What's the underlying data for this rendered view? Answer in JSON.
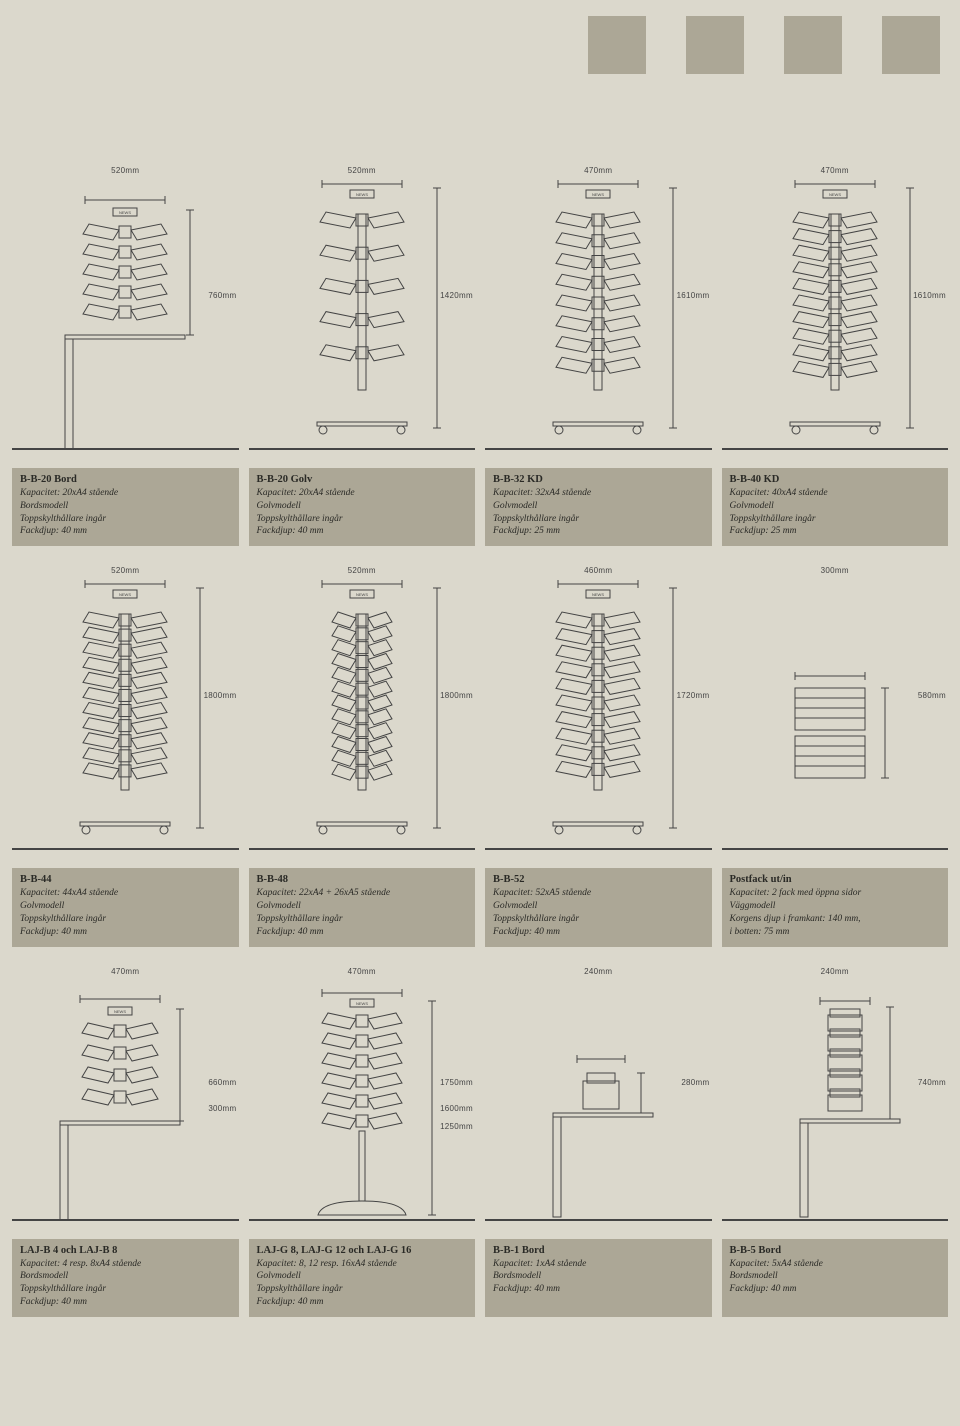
{
  "colors": {
    "page_bg": "#dbd8cc",
    "box_bg": "#aca796",
    "line": "#444",
    "text": "#2a2a26"
  },
  "products": [
    {
      "id": "bb20bord",
      "title": "B-B-20 Bord",
      "lines": [
        "Kapacitet: 20xA4 stående",
        "Bordsmodell",
        "Toppskylthållare ingår",
        "Fackdjup: 40 mm"
      ],
      "dim_top": "520mm",
      "dim_side": "760mm",
      "figure": "table_rack"
    },
    {
      "id": "bb20golv",
      "title": "B-B-20 Golv",
      "lines": [
        "Kapacitet: 20xA4 stående",
        "Golvmodell",
        "Toppskylthållare ingår",
        "Fackdjup: 40 mm"
      ],
      "dim_top": "520mm",
      "dim_side": "1420mm",
      "figure": "floor_short_wings"
    },
    {
      "id": "bb32kd",
      "title": "B-B-32 KD",
      "lines": [
        "Kapacitet: 32xA4 stående",
        "Golvmodell",
        "Toppskylthållare ingår",
        "Fackdjup: 25 mm"
      ],
      "dim_top": "470mm",
      "dim_side": "1610mm",
      "figure": "floor_wings_8"
    },
    {
      "id": "bb40kd",
      "title": "B-B-40 KD",
      "lines": [
        "Kapacitet: 40xA4 stående",
        "Golvmodell",
        "Toppskylthållare ingår",
        "Fackdjup: 25 mm"
      ],
      "dim_top": "470mm",
      "dim_side": "1610mm",
      "figure": "floor_wings_10"
    },
    {
      "id": "bb44",
      "title": "B-B-44",
      "lines": [
        "Kapacitet: 44xA4 stående",
        "Golvmodell",
        "Toppskylthållare ingår",
        "Fackdjup: 40 mm"
      ],
      "dim_top": "520mm",
      "dim_side": "1800mm",
      "figure": "floor_wings_11"
    },
    {
      "id": "bb48",
      "title": "B-B-48",
      "lines": [
        "Kapacitet: 22xA4 + 26xA5 stående",
        "Golvmodell",
        "Toppskylthållare ingår",
        "Fackdjup: 40 mm"
      ],
      "dim_top": "520mm",
      "dim_side": "1800mm",
      "figure": "floor_narrow_12"
    },
    {
      "id": "bb52",
      "title": "B-B-52",
      "lines": [
        "Kapacitet: 52xA5 stående",
        "Golvmodell",
        "Toppskylthållare ingår",
        "Fackdjup: 40 mm"
      ],
      "dim_top": "460mm",
      "dim_side": "1720mm",
      "figure": "floor_wings_10b"
    },
    {
      "id": "postfack",
      "title": "Postfack ut/in",
      "lines": [
        "Kapacitet: 2 fack med öppna sidor",
        "Väggmodell",
        "Korgens djup i framkant: 140 mm,",
        "i botten: 75 mm"
      ],
      "dim_top": "300mm",
      "dim_side": "580mm",
      "figure": "postfack"
    },
    {
      "id": "lajb",
      "title": "LAJ-B 4 och LAJ-B 8",
      "lines": [
        "Kapacitet: 4 resp. 8xA4 stående",
        "Bordsmodell",
        "Toppskylthållare ingår",
        "Fackdjup: 40 mm"
      ],
      "dim_top": "470mm",
      "dim_side": "660mm",
      "dim_side2": "300mm",
      "figure": "table_compact"
    },
    {
      "id": "lajg",
      "title": "LAJ-G 8, LAJ-G 12 och LAJ-G 16",
      "lines": [
        "Kapacitet: 8, 12 resp. 16xA4 stående",
        "Golvmodell",
        "Toppskylthållare ingår",
        "Fackdjup: 40 mm"
      ],
      "dim_top": "470mm",
      "dim_side": "1750mm",
      "dim_side2": "1600mm",
      "dim_side3": "1250mm",
      "figure": "floor_pedestal"
    },
    {
      "id": "bb1bord",
      "title": "B-B-1 Bord",
      "lines": [
        "Kapacitet: 1xA4 stående",
        "Bordsmodell",
        "Fackdjup: 40 mm"
      ],
      "dim_top": "240mm",
      "dim_side": "280mm",
      "figure": "tiny_single"
    },
    {
      "id": "bb5bord",
      "title": "B-B-5 Bord",
      "lines": [
        "Kapacitet: 5xA4 stående",
        "Bordsmodell",
        "Fackdjup: 40 mm"
      ],
      "dim_top": "240mm",
      "dim_side": "740mm",
      "figure": "stack_5"
    }
  ]
}
